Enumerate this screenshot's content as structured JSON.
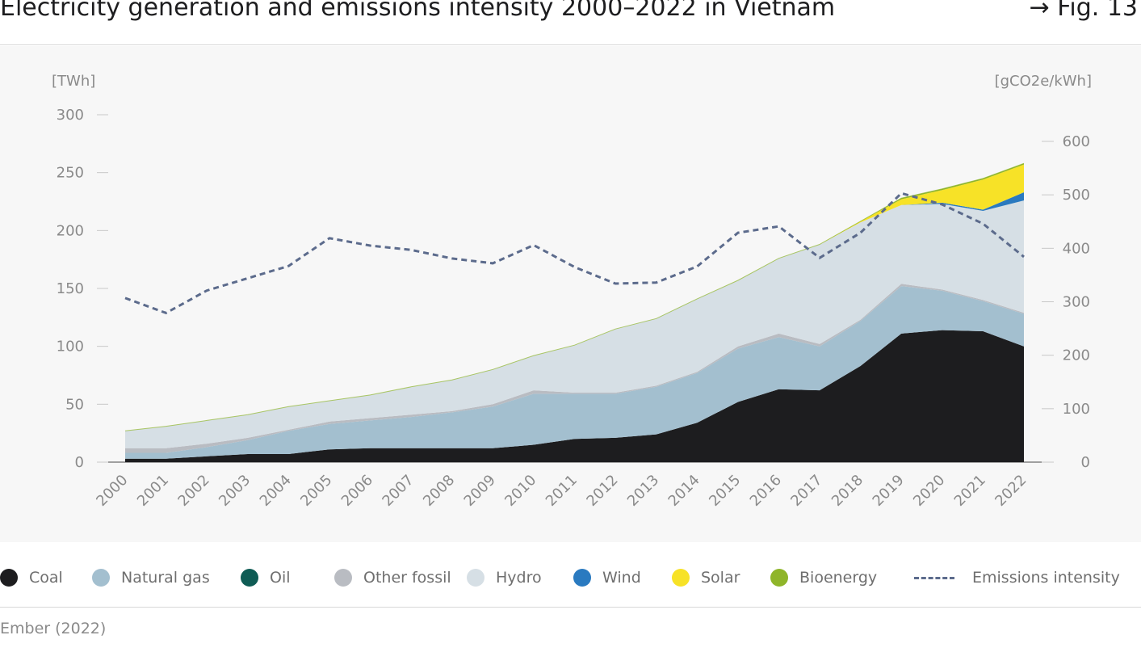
{
  "header": {
    "title": "Electricity generation and emissions intensity 2000–2022 in Vietnam",
    "figref": "→ Fig. 13"
  },
  "footer": {
    "source": "Ember (2022)"
  },
  "chart_data": {
    "type": "area",
    "title": "Electricity generation and emissions intensity 2000–2022 in Vietnam",
    "y_left_unit": "[TWh]",
    "y_right_unit": "[gCO2e/kWh]",
    "y_left_range": [
      0,
      300
    ],
    "y_left_ticks": [
      0,
      50,
      100,
      150,
      200,
      250,
      300
    ],
    "y_right_range": [
      0,
      650
    ],
    "y_right_ticks": [
      0,
      100,
      200,
      300,
      400,
      500,
      600
    ],
    "grid": false,
    "legend_position": "bottom",
    "x": [
      "2000",
      "2001",
      "2002",
      "2003",
      "2004",
      "2005",
      "2006",
      "2007",
      "2008",
      "2009",
      "2010",
      "2011",
      "2012",
      "2013",
      "2014",
      "2015",
      "2016",
      "2017",
      "2018",
      "2019",
      "2020",
      "2021",
      "2022"
    ],
    "series": [
      {
        "name": "Coal",
        "color": "#1d1d1f",
        "values": [
          3,
          3,
          5,
          7,
          7,
          11,
          12,
          12,
          12,
          12,
          15,
          20,
          21,
          24,
          34,
          52,
          63,
          62,
          83,
          111,
          114,
          113,
          100
        ]
      },
      {
        "name": "Natural gas",
        "color": "#a3bfcf",
        "values": [
          5,
          5,
          8,
          12,
          20,
          22,
          24,
          27,
          31,
          36,
          44,
          39,
          38,
          41,
          43,
          46,
          45,
          38,
          39,
          41,
          34,
          26,
          28
        ]
      },
      {
        "name": "Oil",
        "color": "#0f5c55",
        "values": [
          0,
          0,
          0,
          0,
          0,
          0,
          0,
          0,
          0,
          0,
          0,
          0,
          0,
          0,
          0,
          0,
          0,
          0,
          0,
          0,
          0,
          0,
          0
        ]
      },
      {
        "name": "Other fossil",
        "color": "#b9bcc2",
        "values": [
          4,
          4,
          3,
          2,
          1,
          2,
          2,
          2,
          1,
          2,
          3,
          1,
          1,
          1,
          1,
          2,
          3,
          2,
          1,
          2,
          1,
          1,
          1
        ]
      },
      {
        "name": "Hydro",
        "color": "#d6dfe5",
        "values": [
          15,
          19,
          20,
          20,
          20,
          18,
          20,
          24,
          27,
          30,
          30,
          41,
          55,
          58,
          63,
          57,
          65,
          86,
          84,
          68,
          74,
          77,
          97
        ]
      },
      {
        "name": "Wind",
        "color": "#2a7ac0",
        "values": [
          0,
          0,
          0,
          0,
          0,
          0,
          0,
          0,
          0,
          0,
          0,
          0,
          0,
          0,
          0,
          0,
          0,
          0,
          0,
          0,
          1,
          1,
          7
        ]
      },
      {
        "name": "Solar",
        "color": "#f7e227",
        "values": [
          0,
          0,
          0,
          0,
          0,
          0,
          0,
          0,
          0,
          0,
          0,
          0,
          0,
          0,
          0,
          0,
          0,
          0,
          1,
          5,
          11,
          26,
          24
        ]
      },
      {
        "name": "Bioenergy",
        "color": "#8fb52a",
        "values": [
          0,
          0,
          0,
          0,
          0,
          0,
          0,
          0,
          0,
          0,
          0,
          0,
          0,
          0,
          0,
          0,
          0,
          0,
          0,
          1,
          1,
          1,
          1
        ]
      }
    ],
    "line_series": {
      "name": "Emissions intensity",
      "color": "#5c6b8c",
      "axis": "right",
      "values": [
        307,
        279,
        321,
        344,
        367,
        419,
        405,
        397,
        381,
        372,
        406,
        365,
        334,
        336,
        366,
        429,
        441,
        382,
        429,
        503,
        482,
        446,
        384
      ]
    }
  }
}
